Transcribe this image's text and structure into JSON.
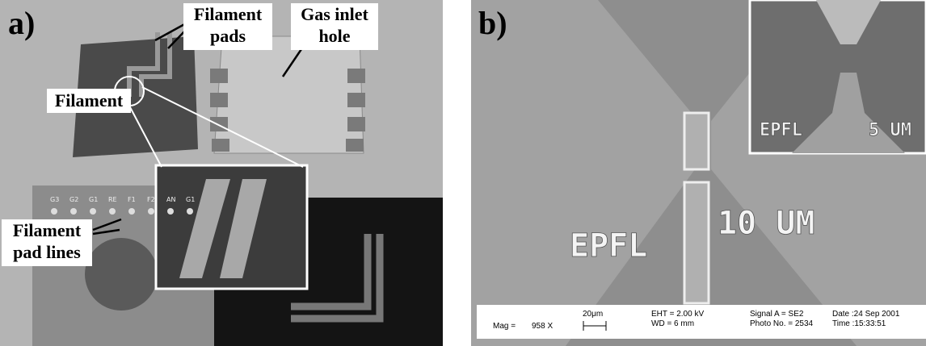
{
  "panel_a": {
    "label": "a)",
    "filament_pads": [
      "Filament",
      "pads"
    ],
    "gas_inlet_hole": [
      "Gas inlet",
      "hole"
    ],
    "filament": "Filament",
    "filament_pad_lines": [
      "Filament",
      "pad lines"
    ],
    "pin_labels": [
      "G3",
      "G2",
      "G1",
      "RE",
      "F1",
      "F2",
      "AN",
      "G1"
    ]
  },
  "panel_b": {
    "label": "b)",
    "main_text": [
      "EPFL",
      "10 UM"
    ],
    "inset_text": [
      "EPFL",
      "5 UM"
    ],
    "info_bar": {
      "mag_label": "Mag =",
      "mag_value": "958 X",
      "scale": "20μm",
      "eht": "EHT = 2.00 kV",
      "wd": "WD =  6 mm",
      "signal": "Signal A = SE2",
      "photo": "Photo No. = 2534",
      "date": "Date :24 Sep 2001",
      "time": "Time :15:33:51"
    }
  }
}
